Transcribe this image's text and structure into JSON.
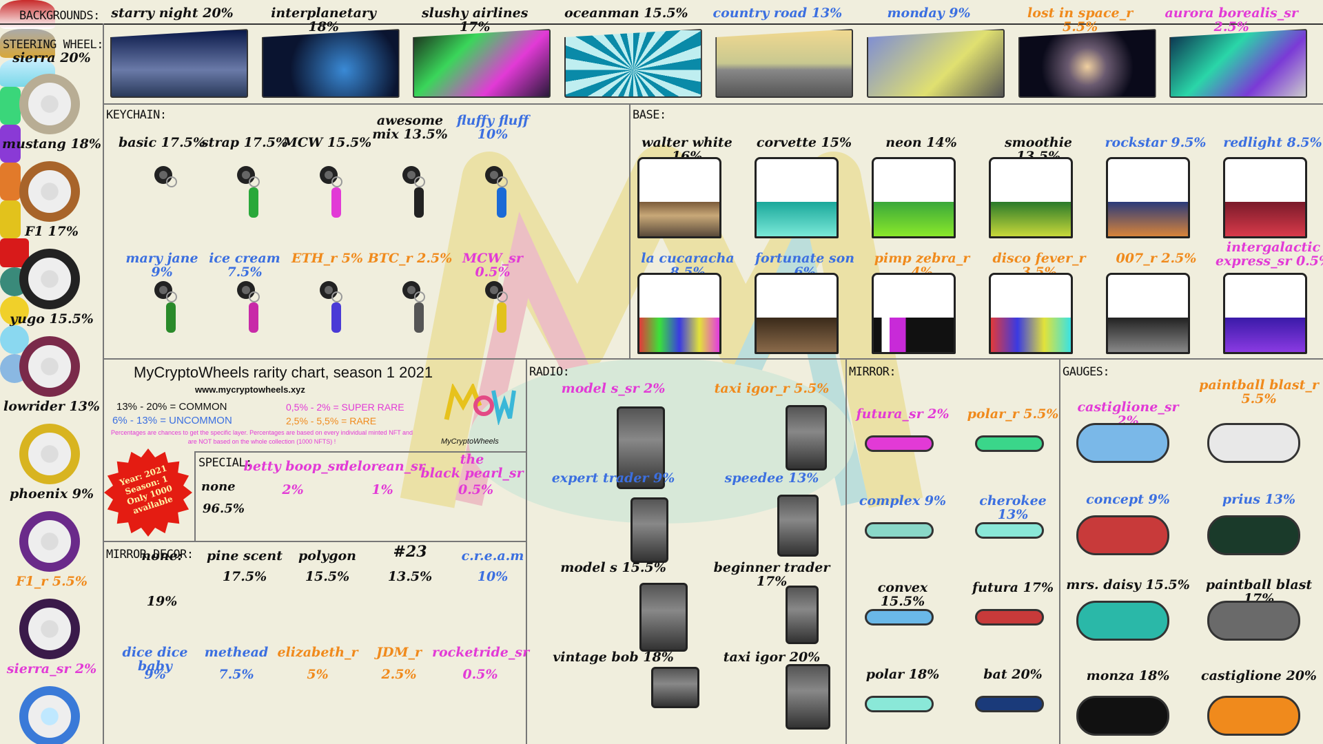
{
  "sections": {
    "backgrounds": "BACKGROUNDS:",
    "steering": "STEERING WHEEL:",
    "keychain": "KEYCHAIN:",
    "base": "BASE:",
    "special": "SPECIAL:",
    "mirror_decor": "MIRROR DECOR:",
    "radio": "RADIO:",
    "mirror": "MIRROR:",
    "gauges": "GAUGES:"
  },
  "backgrounds": [
    {
      "label": "starry night 20%",
      "color": "#111"
    },
    {
      "label": "interplanetary 18%",
      "color": "#111"
    },
    {
      "label": "slushy airlines 17%",
      "color": "#111"
    },
    {
      "label": "oceanman 15.5%",
      "color": "#111"
    },
    {
      "label": "country road 13%",
      "color": "#3b6fe0"
    },
    {
      "label": "monday 9%",
      "color": "#3b6fe0"
    },
    {
      "label": "lost in space_r 5.5%",
      "color": "#f08a1c"
    },
    {
      "label": "aurora borealis_sr 2.5%",
      "color": "#e23ad6"
    }
  ],
  "steering": [
    {
      "label": "sierra 20%",
      "color": "#111"
    },
    {
      "label": "mustang 18%",
      "color": "#111"
    },
    {
      "label": "F1 17%",
      "color": "#111"
    },
    {
      "label": "yugo 15.5%",
      "color": "#111"
    },
    {
      "label": "lowrider 13%",
      "color": "#111"
    },
    {
      "label": "phoenix 9%",
      "color": "#111"
    },
    {
      "label": "F1_r 5.5%",
      "color": "#f08a1c"
    },
    {
      "label": "sierra_sr 2%",
      "color": "#e23ad6"
    }
  ],
  "keychain": {
    "row1": [
      {
        "label": "basic 17.5%",
        "color": "#111"
      },
      {
        "label": "strap 17.5%",
        "color": "#111"
      },
      {
        "label": "MCW 15.5%",
        "color": "#111"
      },
      {
        "label": "awesome\nmix 13.5%",
        "color": "#111"
      },
      {
        "label": "fluffy fluff\n10%",
        "color": "#3b6fe0"
      }
    ],
    "row2": [
      {
        "label": "mary jane 9%",
        "color": "#3b6fe0"
      },
      {
        "label": "ice cream 7.5%",
        "color": "#3b6fe0"
      },
      {
        "label": "ETH_r 5%",
        "color": "#f08a1c"
      },
      {
        "label": "BTC_r 2.5%",
        "color": "#f08a1c"
      },
      {
        "label": "MCW_sr 0.5%",
        "color": "#e23ad6"
      }
    ]
  },
  "base": {
    "row1": [
      {
        "label": "walter white 16%",
        "color": "#111"
      },
      {
        "label": "corvette 15%",
        "color": "#111"
      },
      {
        "label": "neon 14%",
        "color": "#111"
      },
      {
        "label": "smoothie 13.5%",
        "color": "#111"
      },
      {
        "label": "rockstar 9.5%",
        "color": "#3b6fe0"
      },
      {
        "label": "redlight 8.5%",
        "color": "#3b6fe0"
      }
    ],
    "row2": [
      {
        "label": "la cucaracha 8.5%",
        "color": "#3b6fe0"
      },
      {
        "label": "fortunate son 6%",
        "color": "#3b6fe0"
      },
      {
        "label": "pimp zebra_r 4%",
        "color": "#f08a1c"
      },
      {
        "label": "disco fever_r 3.5%",
        "color": "#f08a1c"
      },
      {
        "label": "007_r 2.5%",
        "color": "#f08a1c"
      },
      {
        "label": "intergalactic\nexpress_sr 0.5%",
        "color": "#e23ad6"
      }
    ]
  },
  "info": {
    "title": "MyCryptoWheels rarity chart, season 1 2021",
    "url": "www.mycryptowheels.xyz",
    "common": "13% - 20% = COMMON",
    "uncommon": "6% - 13% = UNCOMMON",
    "super_rare": "0,5% - 2% = SUPER RARE",
    "rare": "2,5% - 5,5% = RARE",
    "note": "Percentages are chances to get the specific layer. Percentages are based on every individual minted NFT and are NOT based on the whole collection (1000 NFTS) !",
    "logo": "MyCryptoWheels",
    "badge": "Year: 2021\nSeason: 1\nOnly 1000\navailable"
  },
  "special": {
    "none_label": "none",
    "none_pct": "96.5%",
    "items": [
      {
        "label": "betty boop_sr",
        "pct": "2%"
      },
      {
        "label": "delorean_sr",
        "pct": "1%"
      },
      {
        "label": "the\nblack pearl_sr",
        "pct": "0.5%"
      }
    ]
  },
  "mirror_decor": {
    "row1": [
      {
        "label": "none:",
        "pct": "19%",
        "color": "#111"
      },
      {
        "label": "pine scent",
        "pct": "17.5%",
        "color": "#111"
      },
      {
        "label": "polygon",
        "pct": "15.5%",
        "color": "#111"
      },
      {
        "label": "#23",
        "pct": "13.5%",
        "color": "#111"
      },
      {
        "label": "c.r.e.a.m",
        "pct": "10%",
        "color": "#3b6fe0"
      }
    ],
    "row2": [
      {
        "label": "dice dice baby",
        "pct": "9%",
        "color": "#3b6fe0"
      },
      {
        "label": "methead",
        "pct": "7.5%",
        "color": "#3b6fe0"
      },
      {
        "label": "elizabeth_r",
        "pct": "5%",
        "color": "#f08a1c"
      },
      {
        "label": "JDM_r",
        "pct": "2.5%",
        "color": "#f08a1c"
      },
      {
        "label": "rocketride_sr",
        "pct": "0.5%",
        "color": "#e23ad6"
      }
    ]
  },
  "radio": [
    {
      "label": "model s_sr 2%",
      "color": "#e23ad6"
    },
    {
      "label": "taxi igor_r 5.5%",
      "color": "#f08a1c"
    },
    {
      "label": "expert trader 9%",
      "color": "#3b6fe0"
    },
    {
      "label": "speedee 13%",
      "color": "#3b6fe0"
    },
    {
      "label": "model s 15.5%",
      "color": "#111"
    },
    {
      "label": "beginner trader 17%",
      "color": "#111"
    },
    {
      "label": "vintage bob 18%",
      "color": "#111"
    },
    {
      "label": "taxi igor 20%",
      "color": "#111"
    }
  ],
  "mirror": [
    {
      "label": "futura_sr 2%",
      "color": "#e23ad6"
    },
    {
      "label": "polar_r 5.5%",
      "color": "#f08a1c"
    },
    {
      "label": "complex 9%",
      "color": "#3b6fe0"
    },
    {
      "label": "cherokee 13%",
      "color": "#3b6fe0"
    },
    {
      "label": "convex 15.5%",
      "color": "#111"
    },
    {
      "label": "futura 17%",
      "color": "#111"
    },
    {
      "label": "polar 18%",
      "color": "#111"
    },
    {
      "label": "bat 20%",
      "color": "#111"
    }
  ],
  "gauges": [
    {
      "label": "castiglione_sr 2%",
      "color": "#e23ad6"
    },
    {
      "label": "paintball blast_r\n5.5%",
      "color": "#f08a1c"
    },
    {
      "label": "concept 9%",
      "color": "#3b6fe0"
    },
    {
      "label": "prius 13%",
      "color": "#3b6fe0"
    },
    {
      "label": "mrs. daisy 15.5%",
      "color": "#111"
    },
    {
      "label": "paintball blast 17%",
      "color": "#111"
    },
    {
      "label": "monza 18%",
      "color": "#111"
    },
    {
      "label": "castiglione 20%",
      "color": "#111"
    }
  ]
}
